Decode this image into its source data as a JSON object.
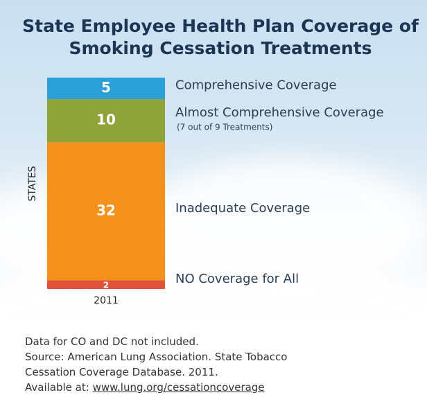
{
  "chart_data": {
    "type": "stacked-bar",
    "title": "State Employee Health Plan Coverage of Smoking Cessation Treatments",
    "y_label": "STATES",
    "categories": [
      "2011"
    ],
    "series": [
      {
        "name": "NO Coverage for All",
        "color": "#e0533a",
        "values": [
          2
        ]
      },
      {
        "name": "Inadequate Coverage",
        "color": "#f5921e",
        "values": [
          32
        ]
      },
      {
        "name": "Almost Comprehensive Coverage",
        "note": "(7 out of 9 Treatments)",
        "color": "#8fa33a",
        "values": [
          10
        ]
      },
      {
        "name": "Comprehensive Coverage",
        "color": "#2b9fd8",
        "values": [
          5
        ]
      }
    ]
  },
  "footnote": {
    "lines": [
      "Data for CO and DC not included.",
      "Source: American Lung Association. State Tobacco",
      "Cessation Coverage Database. 2011.",
      "Available at:"
    ],
    "link": "www.lung.org/cessationcoverage"
  }
}
